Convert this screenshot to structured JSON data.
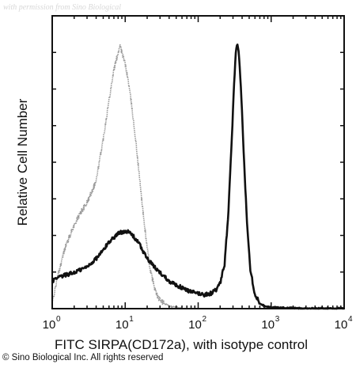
{
  "watermark": "with permission from Sino Biological",
  "copyright": "© Sino Biological Inc. All rights reserved",
  "colors": {
    "sample": "#111111",
    "isotype": "#9a9a9a",
    "axis": "#111111",
    "background": "#ffffff"
  },
  "chart_data": {
    "type": "line",
    "title": "",
    "xlabel": "FITC SIRPA(CD172a), with isotype control",
    "ylabel": "Relative Cell Number",
    "x_scale": "log",
    "xlim": [
      1,
      10000
    ],
    "ylim": [
      0,
      1
    ],
    "y_ticks_labeled": false,
    "grid": false,
    "legend": "none",
    "x_ticks": [
      {
        "value": 1,
        "base": "10",
        "exp": "0"
      },
      {
        "value": 10,
        "base": "10",
        "exp": "1"
      },
      {
        "value": 100,
        "base": "10",
        "exp": "2"
      },
      {
        "value": 1000,
        "base": "10",
        "exp": "3"
      },
      {
        "value": 10000,
        "base": "10",
        "exp": "4"
      }
    ],
    "series": [
      {
        "key": "isotype",
        "style": "light-dotted",
        "x": [
          1,
          1.2,
          1.5,
          2,
          2.5,
          3,
          4,
          5,
          6,
          7,
          8,
          8.5,
          9,
          10,
          11,
          12,
          14,
          16,
          18,
          20,
          22,
          25,
          28,
          32,
          36,
          40,
          45,
          50,
          60
        ],
        "y": [
          0.02,
          0.12,
          0.22,
          0.3,
          0.35,
          0.38,
          0.46,
          0.61,
          0.75,
          0.86,
          0.92,
          0.95,
          0.92,
          0.88,
          0.82,
          0.75,
          0.6,
          0.45,
          0.32,
          0.22,
          0.14,
          0.08,
          0.04,
          0.025,
          0.015,
          0.01,
          0.006,
          0.004,
          0.002
        ]
      },
      {
        "key": "sample",
        "style": "dark-solid",
        "x": [
          1,
          1.2,
          1.5,
          2,
          3,
          4,
          5,
          6,
          8,
          10,
          12,
          15,
          20,
          25,
          30,
          40,
          50,
          60,
          80,
          100,
          120,
          150,
          180,
          200,
          230,
          260,
          290,
          310,
          330,
          350,
          370,
          400,
          430,
          470,
          520,
          600,
          700,
          800,
          1000,
          1500,
          2000,
          3000,
          5000,
          10000
        ],
        "y": [
          0.1,
          0.11,
          0.12,
          0.13,
          0.15,
          0.18,
          0.21,
          0.24,
          0.27,
          0.28,
          0.27,
          0.24,
          0.18,
          0.15,
          0.13,
          0.1,
          0.085,
          0.075,
          0.06,
          0.055,
          0.05,
          0.055,
          0.07,
          0.09,
          0.16,
          0.35,
          0.62,
          0.8,
          0.93,
          0.95,
          0.88,
          0.7,
          0.5,
          0.3,
          0.14,
          0.05,
          0.02,
          0.01,
          0.005,
          0.003,
          0.002,
          0.001,
          0.001,
          0.001
        ]
      }
    ]
  }
}
